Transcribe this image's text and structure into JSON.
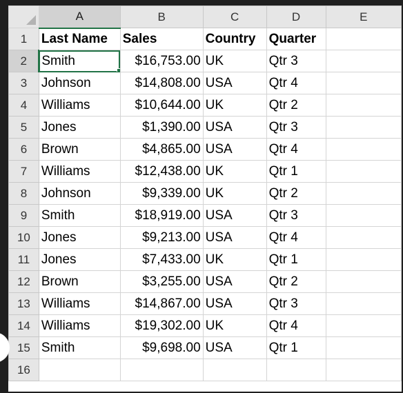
{
  "columns": [
    "A",
    "B",
    "C",
    "D",
    "E"
  ],
  "rows": [
    {
      "num": "1",
      "cells": [
        "Last Name",
        "Sales",
        "Country",
        "Quarter",
        ""
      ]
    },
    {
      "num": "2",
      "cells": [
        "Smith",
        "$16,753.00",
        "UK",
        "Qtr 3",
        ""
      ]
    },
    {
      "num": "3",
      "cells": [
        "Johnson",
        "$14,808.00",
        "USA",
        "Qtr 4",
        ""
      ]
    },
    {
      "num": "4",
      "cells": [
        "Williams",
        "$10,644.00",
        "UK",
        "Qtr 2",
        ""
      ]
    },
    {
      "num": "5",
      "cells": [
        "Jones",
        "$1,390.00",
        "USA",
        "Qtr 3",
        ""
      ]
    },
    {
      "num": "6",
      "cells": [
        "Brown",
        "$4,865.00",
        "USA",
        "Qtr 4",
        ""
      ]
    },
    {
      "num": "7",
      "cells": [
        "Williams",
        "$12,438.00",
        "UK",
        "Qtr 1",
        ""
      ]
    },
    {
      "num": "8",
      "cells": [
        "Johnson",
        "$9,339.00",
        "UK",
        "Qtr 2",
        ""
      ]
    },
    {
      "num": "9",
      "cells": [
        "Smith",
        "$18,919.00",
        "USA",
        "Qtr 3",
        ""
      ]
    },
    {
      "num": "10",
      "cells": [
        "Jones",
        "$9,213.00",
        "USA",
        "Qtr 4",
        ""
      ]
    },
    {
      "num": "11",
      "cells": [
        "Jones",
        "$7,433.00",
        "UK",
        "Qtr 1",
        ""
      ]
    },
    {
      "num": "12",
      "cells": [
        "Brown",
        "$3,255.00",
        "USA",
        "Qtr 2",
        ""
      ]
    },
    {
      "num": "13",
      "cells": [
        "Williams",
        "$14,867.00",
        "USA",
        "Qtr 3",
        ""
      ]
    },
    {
      "num": "14",
      "cells": [
        "Williams",
        "$19,302.00",
        "UK",
        "Qtr 4",
        ""
      ]
    },
    {
      "num": "15",
      "cells": [
        "Smith",
        "$9,698.00",
        "USA",
        "Qtr 1",
        ""
      ]
    },
    {
      "num": "16",
      "cells": [
        "",
        "",
        "",
        "",
        ""
      ]
    }
  ],
  "selection": {
    "active_cell": "A2"
  },
  "colors": {
    "selection": "#217346",
    "header_bg": "#e6e6e6",
    "header_active_bg": "#d2d2d2",
    "gridline": "#d4d4d4"
  },
  "icons": {
    "corner": "select-all-triangle-icon"
  }
}
